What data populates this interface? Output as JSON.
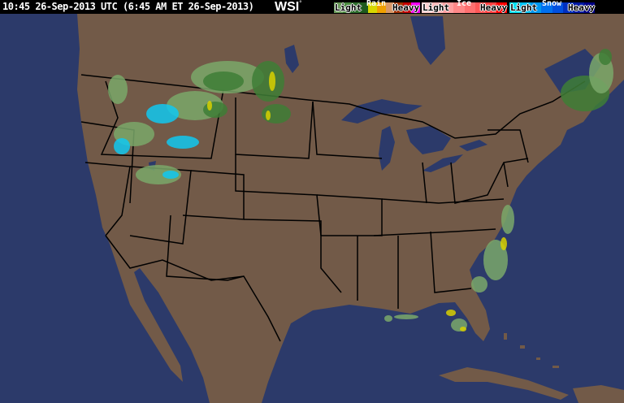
{
  "header": {
    "timestamp": "10:45 26-Sep-2013 UTC (6:45 AM ET 26-Sep-2013)",
    "logo": "WSI",
    "logo_mark": "°"
  },
  "legend": [
    {
      "title": "Rain",
      "light": "Light",
      "heavy": "Heavy",
      "colors": [
        "#6a9a5a",
        "#4a8a40",
        "#2e6e2e",
        "#1e5a1e",
        "#d8d800",
        "#f0a000",
        "#d89868",
        "#a03000",
        "#c00000",
        "#f000f0"
      ]
    },
    {
      "title": "Ice",
      "light": "Light",
      "heavy": "Heavy",
      "colors": [
        "#ffd0d0",
        "#ffb8b8",
        "#ffa0a0",
        "#ff8888",
        "#ff7070",
        "#ff5858",
        "#ff4040",
        "#ff0000"
      ]
    },
    {
      "title": "Snow",
      "light": "Light",
      "heavy": "Heavy",
      "colors": [
        "#00e0f0",
        "#00c0f0",
        "#0098f0",
        "#0070f0",
        "#0050e0",
        "#0030c0",
        "#0018a0",
        "#000080"
      ]
    }
  ],
  "map": {
    "colors": {
      "ocean": "#2c3a6a",
      "land": "#725a48",
      "lakes": "#2c3a6a",
      "borders": "#000000",
      "rain_light": "#7aa86a",
      "rain_mod": "#3e7e36",
      "rain_heavy": "#d8d000",
      "snow": "#10c8f0"
    }
  }
}
